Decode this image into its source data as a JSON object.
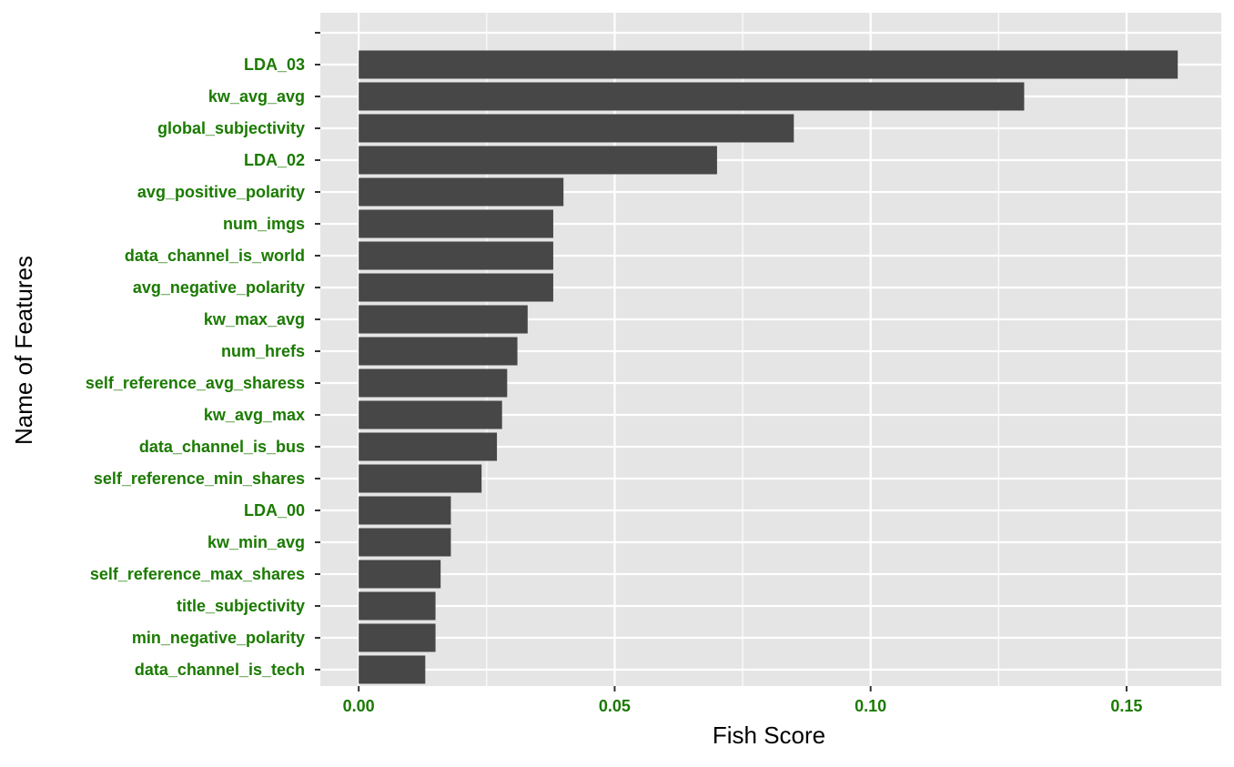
{
  "chart_data": {
    "type": "bar",
    "orientation": "horizontal",
    "xlabel": "Fish Score",
    "ylabel": "Name of Features",
    "xlim": [
      -0.0075,
      0.1685
    ],
    "x_ticks": [
      0.0,
      0.05,
      0.1,
      0.15
    ],
    "x_tick_labels": [
      "0.00",
      "0.05",
      "0.10",
      "0.15"
    ],
    "grid": true,
    "legend": "none",
    "categories": [
      "",
      "LDA_03",
      "kw_avg_avg",
      "global_subjectivity",
      "LDA_02",
      "avg_positive_polarity",
      "num_imgs",
      "data_channel_is_world",
      "avg_negative_polarity",
      "kw_max_avg",
      "num_hrefs",
      "self_reference_avg_sharess",
      "kw_avg_max",
      "data_channel_is_bus",
      "self_reference_min_shares",
      "LDA_00",
      "kw_min_avg",
      "self_reference_max_shares",
      "title_subjectivity",
      "min_negative_polarity",
      "data_channel_is_tech"
    ],
    "values": [
      null,
      0.16,
      0.13,
      0.085,
      0.07,
      0.04,
      0.038,
      0.038,
      0.038,
      0.033,
      0.031,
      0.029,
      0.028,
      0.027,
      0.024,
      0.018,
      0.018,
      0.016,
      0.015,
      0.015,
      0.013
    ],
    "colors": {
      "bar": "#474747",
      "panel": "#e5e5e5",
      "grid": "#ffffff",
      "tick_label": "#1a7a00",
      "tick": "#333333",
      "axis_title": "#000000"
    }
  }
}
